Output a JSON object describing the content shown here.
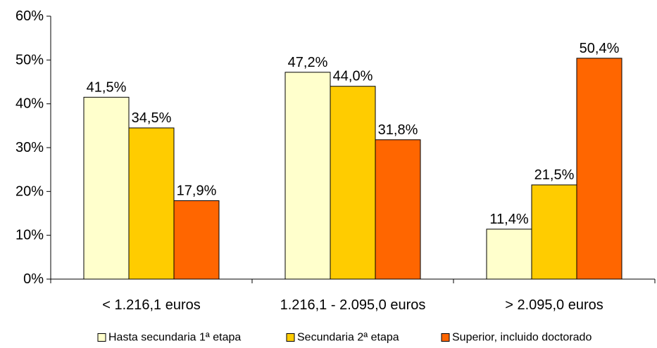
{
  "chart_data": {
    "type": "bar",
    "categories": [
      "< 1.216,1 euros",
      "1.216,1 - 2.095,0 euros",
      "> 2.095,0 euros"
    ],
    "series": [
      {
        "name": "Hasta secundaria 1ª etapa",
        "color": "#FFFFCC",
        "values": [
          41.5,
          47.2,
          11.4
        ],
        "labels": [
          "41,5%",
          "47,2%",
          "11,4%"
        ]
      },
      {
        "name": "Secundaria 2ª etapa",
        "color": "#FFCC00",
        "values": [
          34.5,
          44.0,
          21.5
        ],
        "labels": [
          "34,5%",
          "44,0%",
          "21,5%"
        ]
      },
      {
        "name": "Superior, incluido doctorado",
        "color": "#FF6600",
        "values": [
          17.9,
          31.8,
          50.4
        ],
        "labels": [
          "17,9%",
          "31,8%",
          "50,4%"
        ]
      }
    ],
    "ylim": [
      0,
      60
    ],
    "yticks": [
      0,
      10,
      20,
      30,
      40,
      50,
      60
    ],
    "ytick_labels": [
      "0%",
      "10%",
      "20%",
      "30%",
      "40%",
      "50%",
      "60%"
    ],
    "grid": false,
    "legend": "bottom"
  }
}
